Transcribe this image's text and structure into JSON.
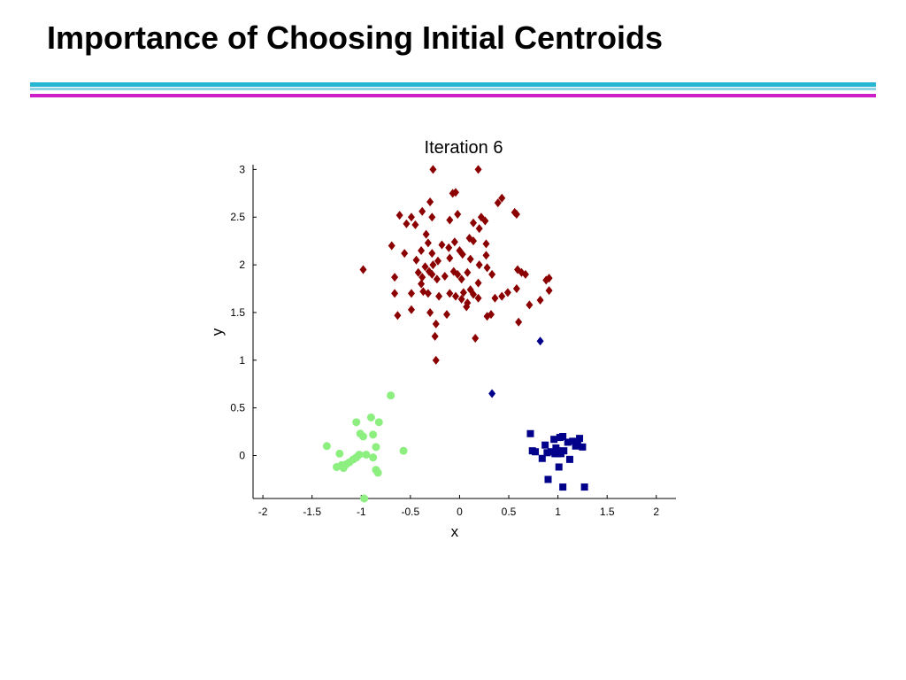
{
  "slide": {
    "title": "Importance of Choosing Initial Centroids"
  },
  "colors": {
    "rule_cyan": "#27b5d4",
    "rule_cyan_light": "#8fd3e6",
    "rule_magenta": "#cc1fc8"
  },
  "chart_data": {
    "type": "scatter",
    "title": "Iteration 6",
    "xlabel": "x",
    "ylabel": "y",
    "xlim": [
      -2.1,
      2.2
    ],
    "ylim": [
      -0.45,
      3.05
    ],
    "xticks": [
      -2,
      -1.5,
      -1,
      -0.5,
      0,
      0.5,
      1,
      1.5,
      2
    ],
    "yticks": [
      0,
      0.5,
      1,
      1.5,
      2,
      2.5,
      3
    ],
    "xtick_labels": [
      "-2",
      "-1.5",
      "-1",
      "-0.5",
      "0",
      "0.5",
      "1",
      "1.5",
      "2"
    ],
    "ytick_labels": [
      "0",
      "0.5",
      "1",
      "1.5",
      "2",
      "2.5",
      "3"
    ],
    "grid": false,
    "legend": "none",
    "series": [
      {
        "marker": "diamond",
        "color": "#8b0000",
        "points": [
          [
            -0.27,
            3.0
          ],
          [
            0.19,
            3.0
          ],
          [
            -0.07,
            2.75
          ],
          [
            -0.04,
            2.76
          ],
          [
            0.39,
            2.65
          ],
          [
            0.43,
            2.7
          ],
          [
            -0.3,
            2.66
          ],
          [
            -0.61,
            2.52
          ],
          [
            -0.54,
            2.43
          ],
          [
            -0.49,
            2.5
          ],
          [
            -0.45,
            2.42
          ],
          [
            -0.38,
            2.56
          ],
          [
            -0.28,
            2.5
          ],
          [
            -0.1,
            2.47
          ],
          [
            -0.02,
            2.53
          ],
          [
            0.14,
            2.44
          ],
          [
            0.22,
            2.5
          ],
          [
            0.26,
            2.46
          ],
          [
            0.56,
            2.55
          ],
          [
            0.58,
            2.53
          ],
          [
            0.2,
            2.38
          ],
          [
            0.1,
            2.28
          ],
          [
            0.14,
            2.25
          ],
          [
            -0.34,
            2.32
          ],
          [
            -0.32,
            2.23
          ],
          [
            -0.39,
            2.15
          ],
          [
            -0.28,
            2.12
          ],
          [
            -0.18,
            2.21
          ],
          [
            -0.11,
            2.18
          ],
          [
            -0.05,
            2.24
          ],
          [
            0.0,
            2.15
          ],
          [
            0.03,
            2.11
          ],
          [
            0.11,
            2.06
          ],
          [
            0.27,
            2.22
          ],
          [
            0.27,
            2.1
          ],
          [
            -0.69,
            2.2
          ],
          [
            -0.56,
            2.12
          ],
          [
            -0.44,
            2.05
          ],
          [
            -0.35,
            1.98
          ],
          [
            -0.27,
            2.0
          ],
          [
            -0.22,
            2.04
          ],
          [
            -0.1,
            2.07
          ],
          [
            -0.06,
            1.93
          ],
          [
            -0.02,
            1.9
          ],
          [
            0.08,
            1.92
          ],
          [
            0.2,
            2.0
          ],
          [
            0.28,
            1.97
          ],
          [
            0.33,
            1.9
          ],
          [
            0.59,
            1.95
          ],
          [
            0.63,
            1.92
          ],
          [
            0.67,
            1.9
          ],
          [
            0.88,
            1.84
          ],
          [
            0.91,
            1.86
          ],
          [
            -0.98,
            1.95
          ],
          [
            -0.66,
            1.87
          ],
          [
            -0.42,
            1.92
          ],
          [
            -0.38,
            1.87
          ],
          [
            -0.31,
            1.93
          ],
          [
            -0.28,
            1.9
          ],
          [
            -0.23,
            1.85
          ],
          [
            -0.15,
            1.88
          ],
          [
            0.02,
            1.85
          ],
          [
            0.19,
            1.81
          ],
          [
            -0.39,
            1.8
          ],
          [
            -0.37,
            1.72
          ],
          [
            -0.32,
            1.7
          ],
          [
            -0.49,
            1.7
          ],
          [
            -0.21,
            1.67
          ],
          [
            -0.1,
            1.7
          ],
          [
            -0.04,
            1.67
          ],
          [
            0.04,
            1.71
          ],
          [
            0.11,
            1.74
          ],
          [
            0.14,
            1.69
          ],
          [
            0.19,
            1.65
          ],
          [
            0.07,
            1.56
          ],
          [
            0.36,
            1.65
          ],
          [
            0.43,
            1.67
          ],
          [
            0.49,
            1.71
          ],
          [
            0.58,
            1.75
          ],
          [
            0.71,
            1.58
          ],
          [
            0.82,
            1.63
          ],
          [
            0.91,
            1.73
          ],
          [
            -0.66,
            1.7
          ],
          [
            -0.63,
            1.47
          ],
          [
            -0.49,
            1.53
          ],
          [
            -0.3,
            1.5
          ],
          [
            -0.24,
            1.38
          ],
          [
            -0.13,
            1.48
          ],
          [
            0.28,
            1.46
          ],
          [
            0.32,
            1.48
          ],
          [
            0.6,
            1.4
          ],
          [
            -0.25,
            1.25
          ],
          [
            0.16,
            1.23
          ],
          [
            -0.24,
            1.0
          ],
          [
            0.02,
            1.64
          ],
          [
            0.08,
            1.6
          ]
        ]
      },
      {
        "marker": "diamond",
        "color": "#00008b",
        "points": [
          [
            0.82,
            1.2
          ],
          [
            0.33,
            0.65
          ]
        ]
      },
      {
        "marker": "square",
        "color": "#00008b",
        "points": [
          [
            0.72,
            0.23
          ],
          [
            0.74,
            0.05
          ],
          [
            0.77,
            0.04
          ],
          [
            0.84,
            -0.03
          ],
          [
            0.87,
            0.11
          ],
          [
            0.89,
            0.03
          ],
          [
            0.9,
            -0.25
          ],
          [
            0.93,
            0.04
          ],
          [
            0.96,
            0.17
          ],
          [
            0.98,
            0.08
          ],
          [
            0.99,
            0.02
          ],
          [
            1.0,
            0.05
          ],
          [
            1.01,
            -0.12
          ],
          [
            1.02,
            0.19
          ],
          [
            1.03,
            0.02
          ],
          [
            1.05,
            0.2
          ],
          [
            1.05,
            -0.33
          ],
          [
            1.1,
            0.14
          ],
          [
            1.12,
            -0.04
          ],
          [
            1.15,
            0.15
          ],
          [
            1.18,
            0.1
          ],
          [
            1.2,
            0.11
          ],
          [
            1.22,
            0.18
          ],
          [
            1.25,
            0.09
          ],
          [
            1.27,
            -0.33
          ],
          [
            0.97,
            0.02
          ],
          [
            1.06,
            0.05
          ]
        ]
      },
      {
        "marker": "circle",
        "color": "#8cef80",
        "points": [
          [
            -0.7,
            0.63
          ],
          [
            -0.9,
            0.4
          ],
          [
            -1.05,
            0.35
          ],
          [
            -0.82,
            0.35
          ],
          [
            -1.01,
            0.23
          ],
          [
            -0.98,
            0.2
          ],
          [
            -0.88,
            0.22
          ],
          [
            -1.35,
            0.1
          ],
          [
            -0.85,
            0.09
          ],
          [
            -0.57,
            0.05
          ],
          [
            -1.22,
            0.02
          ],
          [
            -1.02,
            0.01
          ],
          [
            -0.95,
            0.01
          ],
          [
            -0.88,
            -0.02
          ],
          [
            -1.08,
            -0.04
          ],
          [
            -1.12,
            -0.07
          ],
          [
            -1.15,
            -0.09
          ],
          [
            -1.2,
            -0.1
          ],
          [
            -1.25,
            -0.12
          ],
          [
            -0.85,
            -0.15
          ],
          [
            -0.83,
            -0.18
          ],
          [
            -0.97,
            -0.45
          ],
          [
            -1.05,
            -0.02
          ],
          [
            -1.18,
            -0.13
          ]
        ]
      }
    ]
  }
}
